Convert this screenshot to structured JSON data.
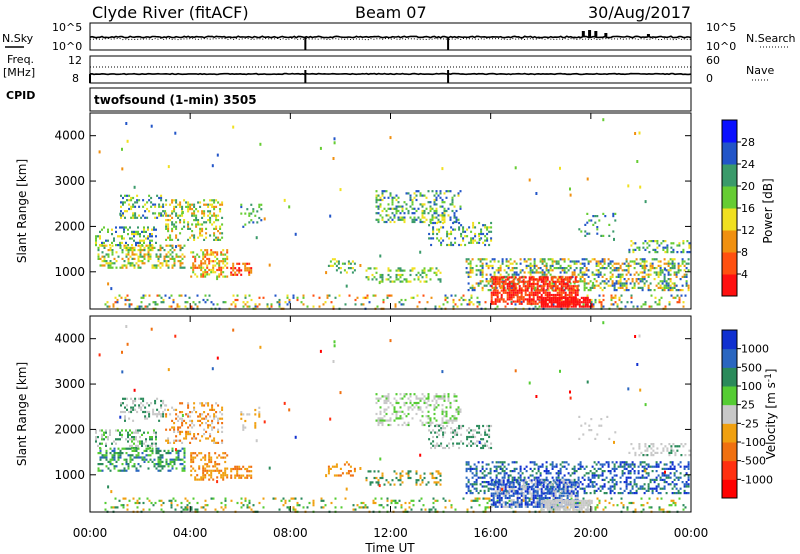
{
  "header": {
    "station": "Clyde River (fitACF)",
    "beam": "Beam 07",
    "date": "30/Aug/2017"
  },
  "side_labels": {
    "nsky": "N.Sky",
    "nsearch": "N.Search",
    "freq_line1": "Freq.",
    "freq_line2": "[MHz]",
    "nave": "Nave",
    "cpid": "CPID",
    "cpid_value": "twofsound (1-min) 3505"
  },
  "noise_axis": {
    "left_top": "10^5",
    "left_bottom": "10^0",
    "right_top": "10^5",
    "right_bottom": "10^0"
  },
  "freq_axis": {
    "left_top": "12",
    "left_bottom": "8",
    "right_top": "60",
    "right_bottom": "0"
  },
  "chart_data": [
    {
      "type": "heatmap",
      "title": "",
      "xlabel": "Time UT",
      "ylabel": "Slant Range [km]",
      "xlim": [
        "00:00",
        "24:00"
      ],
      "ylim": [
        180,
        4500
      ],
      "x_ticks": [
        "00:00",
        "04:00",
        "08:00",
        "12:00",
        "16:00",
        "20:00",
        "00:00"
      ],
      "y_ticks": [
        1000,
        2000,
        3000,
        4000
      ],
      "colorbar": {
        "label": "Power [dB]",
        "ticks": [
          "4",
          "8",
          "12",
          "16",
          "20",
          "24",
          "28"
        ],
        "colors": [
          "#0a10ff",
          "#2255c8",
          "#3a9a6a",
          "#66cc33",
          "#f0e020",
          "#f09010",
          "#ff5010",
          "#ff1010"
        ]
      }
    },
    {
      "type": "heatmap",
      "title": "",
      "xlabel": "Time UT",
      "ylabel": "Slant Range [km]",
      "xlim": [
        "00:00",
        "24:00"
      ],
      "ylim": [
        180,
        4500
      ],
      "x_ticks": [
        "00:00",
        "04:00",
        "08:00",
        "12:00",
        "16:00",
        "20:00",
        "00:00"
      ],
      "y_ticks": [
        1000,
        2000,
        3000,
        4000
      ],
      "colorbar": {
        "label": "Velocity [m s-1]",
        "ticks": [
          "1000",
          "500",
          "100",
          "25",
          "-25",
          "-100",
          "-500",
          "-1000"
        ],
        "colors": [
          "#1030d0",
          "#2a66c0",
          "#2a8a5a",
          "#55cc33",
          "#c8c8c8",
          "#f0a010",
          "#f07010",
          "#ff3010",
          "#ff0000"
        ]
      }
    }
  ]
}
